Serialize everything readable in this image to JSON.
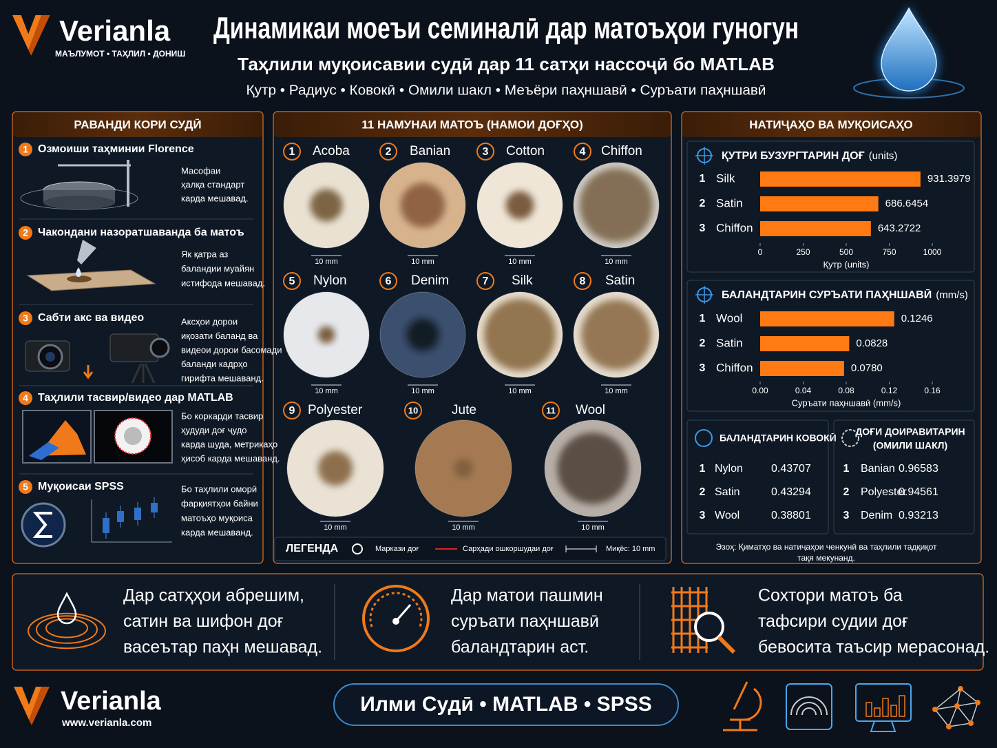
{
  "header": {
    "logo": "Verianla",
    "tagline": "МАЪЛУМОТ • ТАҲЛИЛ • ДОНИШ",
    "title": "Динамикаи моеъи семиналӣ дар матоъҳои гуногун",
    "subtitle": "Таҳлили муқоисавии судӣ дар 11 сатҳи нассоҷӣ бо MATLAB",
    "keywords": "Қутр • Радиус • Ковокӣ • Омили шакл • Меъёри паҳншавӣ • Суръати паҳншавӣ"
  },
  "process": {
    "title": "РАВАНДИ КОРИ СУДӢ",
    "steps": [
      {
        "number": 1,
        "title": "Озмоиши таҳминии Florence",
        "desc": [
          "Масофаи",
          "ҳалқа стандарт",
          "карда мешавад."
        ]
      },
      {
        "number": 2,
        "title": "Чакондани назоратшаванда ба матоъ",
        "desc": [
          "Як қатра аз",
          "баландии муайян",
          "истифода мешавад."
        ]
      },
      {
        "number": 3,
        "title": "Сабти акс ва видео",
        "desc": [
          "Аксҳои дорои",
          "иқозати баланд ва",
          "видеои дорои басомади",
          "баланди кадрҳо",
          "гирифта мешаванд."
        ]
      },
      {
        "number": 4,
        "title": "Таҳлили тасвир/видео дар MATLAB",
        "desc": [
          "Бо коркарди тасвир",
          "ҳудуди доғ ҷудо",
          "карда шуда, метрикаҳо",
          "ҳисоб карда мешаванд."
        ]
      },
      {
        "number": 5,
        "title": "Муқоисаи SPSS",
        "desc": [
          "Бо таҳлили оморӣ",
          "фарқиятҳои байни",
          "матоъҳо муқоиса",
          "карда мешаванд."
        ]
      }
    ]
  },
  "samples": {
    "title": "11 НАМУНАИ МАТОЪ (НАМОИ ДОҒҲО)",
    "items": [
      {
        "number": 1,
        "name": "Acoba",
        "scale": "10 mm"
      },
      {
        "number": 2,
        "name": "Banian",
        "scale": "10 mm"
      },
      {
        "number": 3,
        "name": "Cotton",
        "scale": "10 mm"
      },
      {
        "number": 4,
        "name": "Chiffon",
        "scale": "10 mm"
      },
      {
        "number": 5,
        "name": "Nylon",
        "scale": "10 mm"
      },
      {
        "number": 6,
        "name": "Denim",
        "scale": "10 mm"
      },
      {
        "number": 7,
        "name": "Silk",
        "scale": "10 mm"
      },
      {
        "number": 8,
        "name": "Satin",
        "scale": "10 mm"
      },
      {
        "number": 9,
        "name": "Polyester",
        "scale": "10 mm"
      },
      {
        "number": 10,
        "name": "Jute",
        "scale": "10 mm"
      },
      {
        "number": 11,
        "name": "Wool",
        "scale": "10 mm"
      }
    ],
    "legend": {
      "title": "ЛЕГЕНДА",
      "center": "Маркази доғ",
      "boundary": "Сарҳади ошкоршудаи доғ",
      "scale": "Миқёс: 10 mm"
    }
  },
  "results": {
    "title": "НАТИҶАҲО ВА МУҚОИСАҲО",
    "charts": [
      {
        "type": "bar",
        "title": "ҚУТРИ БУЗУРГТАРИН ДОҒ",
        "unit": "(units)",
        "ranks": [
          1,
          2,
          3
        ],
        "categories": [
          "Silk",
          "Satin",
          "Chiffon"
        ],
        "values": [
          931.3979,
          686.6454,
          643.2722
        ],
        "xlim": [
          0,
          1000
        ],
        "xticks": [
          0,
          250,
          500,
          750,
          1000
        ],
        "xlabel": "Қутр (units)",
        "color": "#ff7a12"
      },
      {
        "type": "bar",
        "title": "БАЛАНДТАРИН СУРЪАТИ ПАҲНШАВӢ",
        "unit": "(mm/s)",
        "ranks": [
          1,
          2,
          3
        ],
        "categories": [
          "Wool",
          "Satin",
          "Chiffon"
        ],
        "values": [
          0.1246,
          0.0828,
          0.078
        ],
        "value_labels": [
          "0.1246",
          "0.0828",
          "0.0780"
        ],
        "xlim": [
          0,
          0.16
        ],
        "xticks": [
          {
            "value": 0,
            "label": "0.00"
          },
          {
            "value": 0.04,
            "label": "0.04"
          },
          {
            "value": 0.08,
            "label": "0.08"
          },
          {
            "value": 0.12,
            "label": "0.12"
          },
          {
            "value": 0.16,
            "label": "0.16"
          }
        ],
        "xlabel": "Суръати паҳншавӣ (mm/s)",
        "color": "#ff7a12"
      }
    ],
    "tables": [
      {
        "title": [
          "БАЛАНДТАРИН КОВОКӢ"
        ],
        "rows": [
          [
            1,
            "Nylon",
            0.43707
          ],
          [
            2,
            "Satin",
            0.43294
          ],
          [
            3,
            "Wool",
            0.38801
          ]
        ]
      },
      {
        "title": [
          "ДОҒИ ДОИРАВИТАРИН",
          "(ОМИЛИ ШАКЛ)"
        ],
        "rows": [
          [
            1,
            "Banian",
            0.96583
          ],
          [
            2,
            "Polyester",
            0.94561
          ],
          [
            3,
            "Denim",
            0.93213
          ]
        ]
      }
    ],
    "note": [
      "Эзоҳ: Қиматҳо ва натиҷаҳои ченкунӣ ва таҳлили тадқиқот",
      "тақя мекунанд."
    ]
  },
  "findings": [
    [
      "Дар сатҳҳои абрешим,",
      "сатин ва шифон доғ",
      "васеътар паҳн мешавад."
    ],
    [
      "Дар матои пашмин",
      "суръати паҳншавӣ",
      "баландтарин аст."
    ],
    [
      "Сохтори матоъ ба",
      "тафсири судии доғ",
      "бевосита таъсир мерасонад."
    ]
  ],
  "footer": {
    "logo": "Verianla",
    "url": "www.verianla.com",
    "tagline": "Илми Судӣ • MATLAB • SPSS"
  }
}
